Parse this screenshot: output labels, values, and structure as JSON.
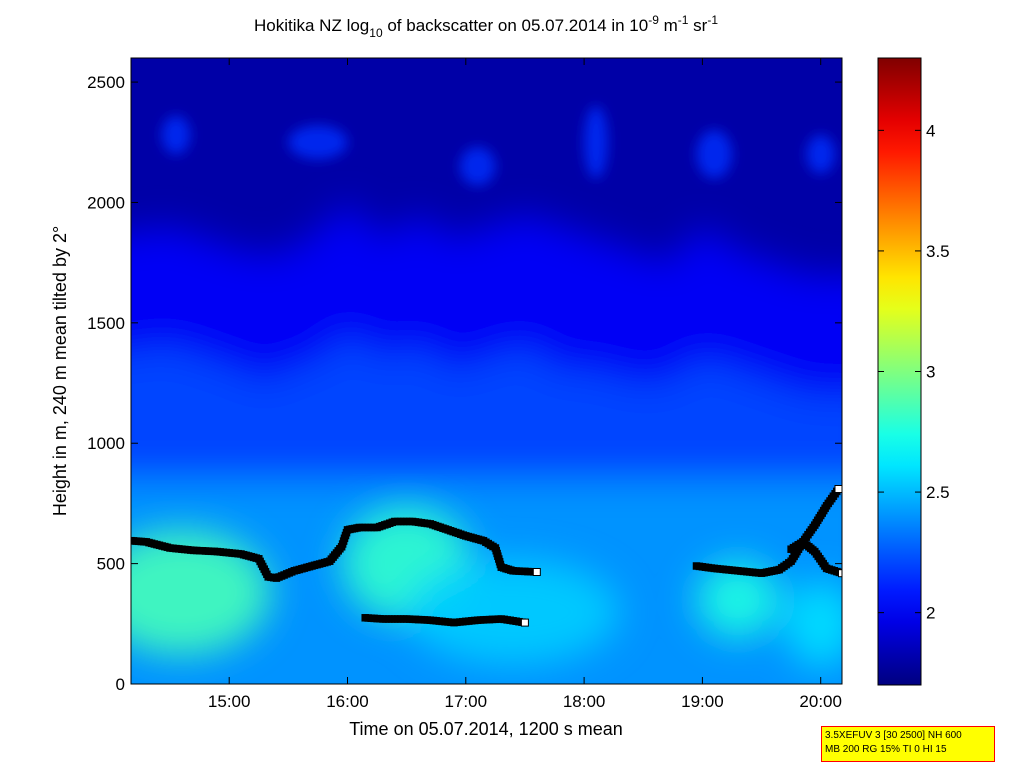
{
  "chart_data": {
    "type": "heatmap",
    "title": "Hokitika NZ log10 of backscatter on 05.07.2014 in 10-9 m-1 sr-1",
    "title_parts": {
      "a": "Hokitika NZ log",
      "sub": "10",
      "b": " of backscatter on 05.07.2014 in 10",
      "sup1": "-9",
      "c": " m",
      "sup2": "-1",
      "d": " sr",
      "sup3": "-1"
    },
    "xlabel": "Time on 05.07.2014, 1200 s mean",
    "ylabel": "Height in m, 240 m mean tilted by 2°",
    "x_range_hours": [
      14.17,
      20.18
    ],
    "ylim": [
      0,
      2600
    ],
    "x_ticks": [
      {
        "value": 15,
        "label": "15:00"
      },
      {
        "value": 16,
        "label": "16:00"
      },
      {
        "value": 17,
        "label": "17:00"
      },
      {
        "value": 18,
        "label": "18:00"
      },
      {
        "value": 19,
        "label": "19:00"
      },
      {
        "value": 20,
        "label": "20:00"
      }
    ],
    "y_ticks": [
      {
        "value": 0,
        "label": "0"
      },
      {
        "value": 500,
        "label": "500"
      },
      {
        "value": 1000,
        "label": "1000"
      },
      {
        "value": 1500,
        "label": "1500"
      },
      {
        "value": 2000,
        "label": "2000"
      },
      {
        "value": 2500,
        "label": "2500"
      }
    ],
    "colorbar": {
      "range": [
        1.7,
        4.3
      ],
      "colormap": "jet",
      "ticks": [
        {
          "value": 2,
          "label": "2"
        },
        {
          "value": 2.5,
          "label": "2.5"
        },
        {
          "value": 3,
          "label": "3"
        },
        {
          "value": 3.5,
          "label": "3.5"
        },
        {
          "value": 4,
          "label": "4"
        }
      ]
    },
    "layers": [
      {
        "x": [
          14.17,
          14.5,
          14.8,
          15.1,
          15.3,
          15.5,
          15.8,
          16.0,
          16.3,
          16.6,
          16.9,
          17.2,
          17.5,
          17.8,
          18.1,
          18.4,
          18.7,
          19.0,
          19.3,
          19.6,
          19.9,
          20.18
        ],
        "top": [
          1850,
          1900,
          1850,
          1800,
          1780,
          1800,
          1900,
          2000,
          1850,
          1950,
          1850,
          1900,
          1950,
          1900,
          1850,
          1800,
          1750,
          1900,
          1800,
          1750,
          1700,
          1700
        ],
        "value": 2.0
      },
      {
        "x": [
          14.17,
          14.5,
          14.8,
          15.1,
          15.3,
          15.5,
          15.8,
          16.0,
          16.3,
          16.6,
          16.9,
          17.2,
          17.5,
          17.8,
          18.1,
          18.4,
          18.7,
          19.0,
          19.3,
          19.6,
          19.9,
          20.18
        ],
        "top": [
          1350,
          1400,
          1350,
          1300,
          1250,
          1300,
          1350,
          1450,
          1350,
          1400,
          1300,
          1350,
          1400,
          1300,
          1300,
          1250,
          1250,
          1350,
          1300,
          1250,
          1200,
          1200
        ],
        "value": 2.2
      },
      {
        "x": [
          14.17,
          20.18
        ],
        "top": [
          850,
          850
        ],
        "value": 2.4
      }
    ],
    "blobs": [
      {
        "x": 14.6,
        "y": 380,
        "rx": 0.75,
        "ry": 260,
        "value": 2.85
      },
      {
        "x": 16.5,
        "y": 500,
        "rx": 0.55,
        "ry": 240,
        "value": 2.8
      },
      {
        "x": 19.3,
        "y": 350,
        "rx": 0.35,
        "ry": 160,
        "value": 2.75
      },
      {
        "x": 17.4,
        "y": 300,
        "rx": 0.9,
        "ry": 220,
        "value": 2.55
      },
      {
        "x": 20.0,
        "y": 250,
        "rx": 0.3,
        "ry": 180,
        "value": 2.6
      }
    ],
    "cloud_patches": [
      {
        "x": 14.55,
        "y": 2280,
        "rx": 0.12,
        "ry": 80,
        "value": 2.15
      },
      {
        "x": 15.75,
        "y": 2250,
        "rx": 0.25,
        "ry": 70,
        "value": 2.15
      },
      {
        "x": 17.1,
        "y": 2150,
        "rx": 0.15,
        "ry": 80,
        "value": 2.15
      },
      {
        "x": 18.1,
        "y": 2250,
        "rx": 0.1,
        "ry": 150,
        "value": 2.15
      },
      {
        "x": 19.1,
        "y": 2200,
        "rx": 0.15,
        "ry": 100,
        "value": 2.15
      },
      {
        "x": 20.0,
        "y": 2200,
        "rx": 0.12,
        "ry": 80,
        "value": 2.15
      }
    ],
    "series": [
      {
        "x": [
          14.17,
          14.3,
          14.5,
          14.7,
          14.9,
          15.1,
          15.25,
          15.33,
          15.4,
          15.55,
          15.7,
          15.85,
          15.95,
          16.0,
          16.1,
          16.25,
          16.4,
          16.55,
          16.7,
          16.85,
          17.0,
          17.15,
          17.25,
          17.3,
          17.4,
          17.6
        ],
        "y": [
          595,
          590,
          565,
          555,
          550,
          540,
          520,
          445,
          440,
          470,
          490,
          510,
          570,
          640,
          650,
          650,
          675,
          675,
          665,
          640,
          615,
          595,
          565,
          485,
          470,
          465
        ]
      },
      {
        "x": [
          16.15,
          16.3,
          16.5,
          16.7,
          16.9,
          17.1,
          17.3,
          17.5
        ],
        "y": [
          275,
          270,
          270,
          265,
          255,
          265,
          270,
          255
        ]
      },
      {
        "x": [
          18.95,
          19.1,
          19.3,
          19.5,
          19.65,
          19.75,
          19.85,
          19.95,
          20.05,
          20.15
        ],
        "y": [
          490,
          480,
          470,
          460,
          475,
          510,
          590,
          660,
          740,
          810
        ]
      },
      {
        "x": [
          19.75,
          19.85,
          19.95,
          20.05,
          20.18
        ],
        "y": [
          560,
          590,
          550,
          480,
          460
        ]
      }
    ]
  },
  "info_box": {
    "line1": "3.5XEFUV 3 [30 2500] NH 600",
    "line2": "MB 200 RG 15% TI 0 HI 15",
    "border_color": "#ff0000",
    "fill_color": "#ffff00"
  }
}
